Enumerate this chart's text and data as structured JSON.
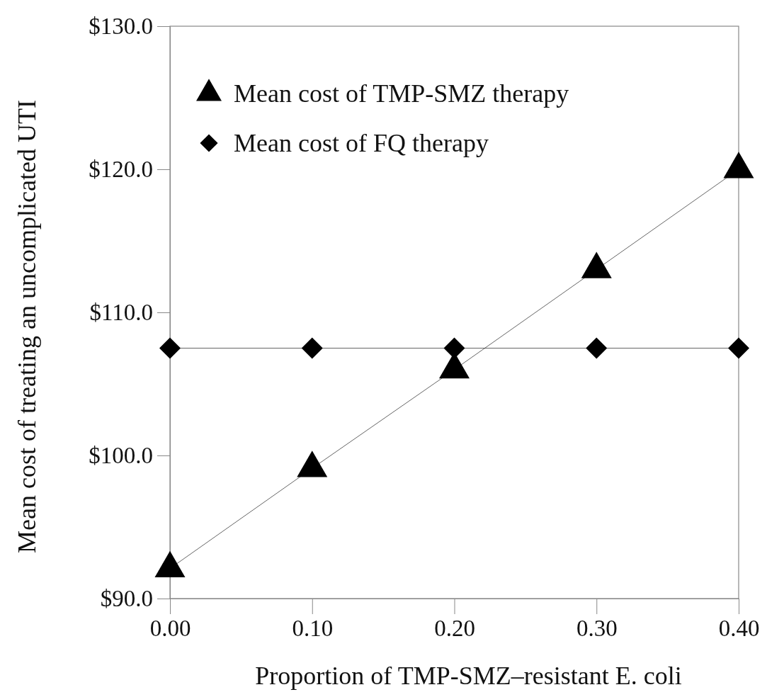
{
  "chart_data": {
    "type": "line",
    "xlabel": "Proportion of TMP-SMZ–resistant E. coli",
    "ylabel": "Mean cost of treating an uncomplicated UTI",
    "x": [
      0,
      0.1,
      0.2,
      0.3,
      0.4
    ],
    "series": [
      {
        "name": "Mean cost of TMP-SMZ therapy",
        "color": "#000000",
        "marker": "triangle",
        "values": [
          92.1,
          99.1,
          106.0,
          113.0,
          120.0
        ]
      },
      {
        "name": "Mean cost of FQ therapy",
        "color": "#000000",
        "marker": "diamond",
        "values": [
          107.5,
          107.5,
          107.5,
          107.5,
          107.5
        ]
      }
    ],
    "xlim": [
      0,
      0.4
    ],
    "xticks": [
      {
        "value": 0,
        "label": "0.00"
      },
      {
        "value": 0.1,
        "label": "0.10"
      },
      {
        "value": 0.2,
        "label": "0.20"
      },
      {
        "value": 0.3,
        "label": "0.30"
      },
      {
        "value": 0.4,
        "label": "0.40"
      }
    ],
    "ylim": [
      90,
      130
    ],
    "yticks": [
      {
        "value": 90,
        "label": "$90.0"
      },
      {
        "value": 100,
        "label": "$100.0"
      },
      {
        "value": 110,
        "label": "$110.0"
      },
      {
        "value": 120,
        "label": "$120.0"
      },
      {
        "value": 130,
        "label": "$130.0"
      }
    ],
    "grid": false,
    "legend": "top left"
  }
}
